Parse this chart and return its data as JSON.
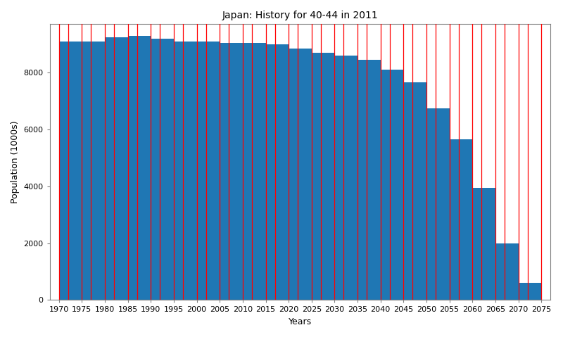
{
  "title": "Japan: History for 40-44 in 2011",
  "xlabel": "Years",
  "ylabel": "Population (1000s)",
  "bin_start_years": [
    1970,
    1975,
    1980,
    1985,
    1990,
    1995,
    2000,
    2005,
    2010,
    2015,
    2020,
    2025,
    2030,
    2035,
    2040,
    2045,
    2050,
    2055,
    2060,
    2065,
    2070
  ],
  "bin_width": 5,
  "values": [
    9100,
    9100,
    9250,
    9300,
    9200,
    9100,
    9100,
    9050,
    9050,
    9000,
    8850,
    8700,
    8600,
    8450,
    8100,
    7650,
    6750,
    5650,
    3950,
    2000,
    600
  ],
  "all_bin_edges": [
    1970,
    1972,
    1975,
    1977,
    1980,
    1982,
    1985,
    1987,
    1990,
    1992,
    1995,
    1997,
    2000,
    2002,
    2005,
    2007,
    2010,
    2012,
    2015,
    2017,
    2020,
    2022,
    2025,
    2027,
    2030,
    2032,
    2035,
    2037,
    2040,
    2042,
    2045,
    2047,
    2050,
    2052,
    2055,
    2057,
    2060,
    2062,
    2065,
    2067,
    2070,
    2072,
    2075
  ],
  "bar_color": "#1f77b4",
  "edge_color": "red",
  "edge_linewidth": 0.9,
  "ylim": [
    0,
    9700
  ],
  "xlim_left": 1968,
  "xlim_right": 2077,
  "figsize": [
    8.0,
    4.79
  ],
  "dpi": 100,
  "title_fontsize": 10,
  "tick_fontsize": 8,
  "label_fontsize": 9,
  "xtick_positions": [
    1970,
    1975,
    1980,
    1985,
    1990,
    1995,
    2000,
    2005,
    2010,
    2015,
    2020,
    2025,
    2030,
    2035,
    2040,
    2045,
    2050,
    2055,
    2060,
    2065,
    2070,
    2075
  ],
  "ytick_positions": [
    0,
    2000,
    4000,
    6000,
    8000
  ]
}
